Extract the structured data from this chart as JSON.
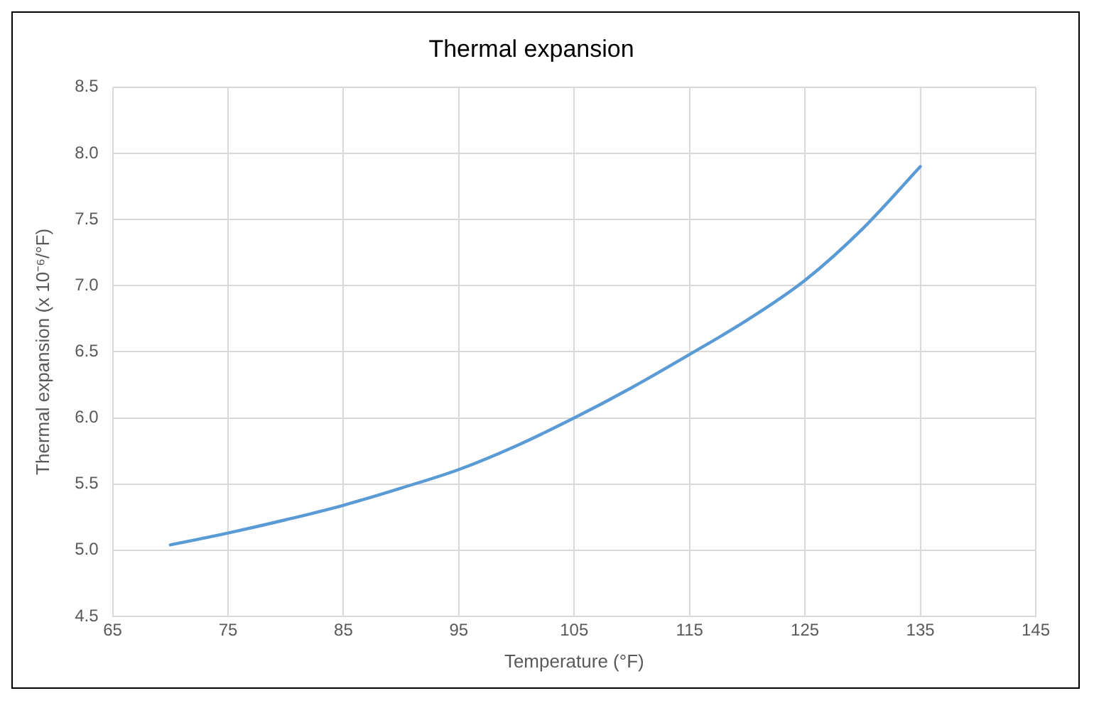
{
  "chart_data": {
    "type": "line",
    "title": "Thermal expansion",
    "xlabel": "Temperature (°F)",
    "ylabel": "Thermal expansion (x 10⁻⁶/°F)",
    "x": [
      70,
      75,
      80,
      85,
      90,
      95,
      100,
      105,
      110,
      115,
      120,
      125,
      130,
      135
    ],
    "series": [
      {
        "color": "#5b9bd5",
        "values": [
          5.04,
          5.13,
          5.23,
          5.34,
          5.47,
          5.61,
          5.79,
          6.0,
          6.23,
          6.48,
          6.74,
          7.04,
          7.43,
          7.9
        ]
      }
    ],
    "xlim": [
      65,
      145
    ],
    "xticks": [
      65,
      75,
      85,
      95,
      105,
      115,
      125,
      135,
      145
    ],
    "ylim": [
      4.5,
      8.5
    ],
    "yticks": [
      {
        "value": 4.5,
        "label": "4.5"
      },
      {
        "value": 5,
        "label": "5.0"
      },
      {
        "value": 5.5,
        "label": "5.5"
      },
      {
        "value": 6,
        "label": "6.0"
      },
      {
        "value": 6.5,
        "label": "6.5"
      },
      {
        "value": 7,
        "label": "7.0"
      },
      {
        "value": 7.5,
        "label": "7.5"
      },
      {
        "value": 8,
        "label": "8.0"
      },
      {
        "value": 8.5,
        "label": "8.5"
      }
    ],
    "grid": true,
    "legend": false,
    "marker": "none",
    "line_style": "solid"
  }
}
